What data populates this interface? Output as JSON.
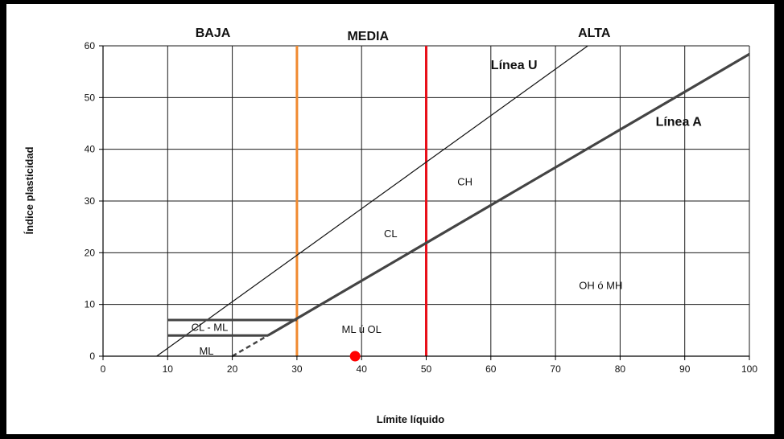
{
  "chart_data": {
    "type": "line",
    "title": "",
    "xlabel": "Límite líquido",
    "ylabel": "Índice plasticidad",
    "xlim": [
      0,
      100
    ],
    "ylim": [
      0,
      60
    ],
    "xticks": [
      0,
      10,
      20,
      30,
      40,
      50,
      60,
      70,
      80,
      90,
      100
    ],
    "yticks": [
      0,
      10,
      20,
      30,
      40,
      50,
      60
    ],
    "grid": true,
    "zones": [
      {
        "label": "BAJA",
        "x": 17
      },
      {
        "label": "MEDIA",
        "x": 41
      },
      {
        "label": "ALTA",
        "x": 76
      }
    ],
    "boundaries": [
      {
        "x": 30,
        "color": "#f08a30"
      },
      {
        "x": 50,
        "color": "#e8101a"
      }
    ],
    "series": [
      {
        "name": "Línea U",
        "x": [
          8.3,
          75
        ],
        "y": [
          0,
          60
        ],
        "color": "#111111",
        "weight": "thin",
        "label_at": [
          60,
          55.5
        ]
      },
      {
        "name": "Línea A",
        "x": [
          25.5,
          100
        ],
        "y": [
          4,
          58.4
        ],
        "color": "#444444",
        "weight": "thick",
        "label_at": [
          85.5,
          44.5
        ]
      }
    ],
    "dashed_segments": [
      {
        "x": [
          20,
          25.5
        ],
        "y": [
          0,
          4
        ]
      }
    ],
    "cl_ml_band": {
      "x_start": 10,
      "y_lower": 4,
      "y_upper": 7,
      "x_upper_end": 30,
      "x_lower_end": 25.5
    },
    "regions": [
      {
        "label": "CH",
        "x": 56,
        "y": 33
      },
      {
        "label": "CL",
        "x": 44.5,
        "y": 23
      },
      {
        "label": "OH ó MH",
        "x": 77,
        "y": 13
      },
      {
        "label": "ML ú OL",
        "x": 40,
        "y": 4.5
      },
      {
        "label": "CL - ML",
        "x": 16.5,
        "y": 4.9
      },
      {
        "label": "ML",
        "x": 16,
        "y": 0.3
      }
    ],
    "points": [
      {
        "x": 39,
        "y": 0,
        "color": "#ff0000"
      }
    ]
  }
}
